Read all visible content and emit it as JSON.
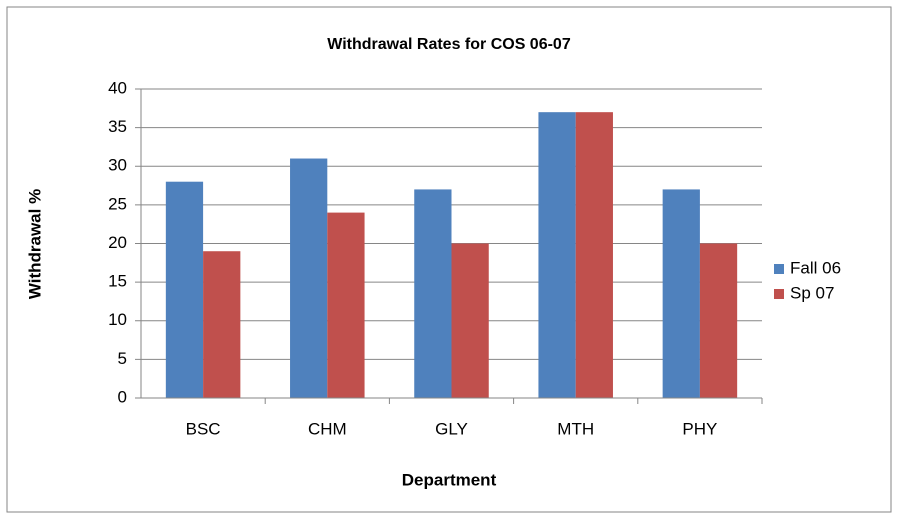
{
  "chart_data": {
    "type": "bar",
    "title": "Withdrawal Rates for COS 06-07",
    "x_label": "Department",
    "y_label": "Withdrawal %",
    "categories": [
      "BSC",
      "CHM",
      "GLY",
      "MTH",
      "PHY"
    ],
    "series": [
      {
        "name": "Fall 06",
        "color": "#4f81bd",
        "values": [
          28,
          31,
          27,
          37,
          27
        ]
      },
      {
        "name": "Sp 07",
        "color": "#c0504d",
        "values": [
          19,
          24,
          20,
          37,
          20
        ]
      }
    ],
    "ylim": [
      0,
      40
    ],
    "yticks": [
      0,
      5,
      10,
      15,
      20,
      25,
      30,
      35,
      40
    ],
    "grid": true,
    "legend": "right"
  }
}
